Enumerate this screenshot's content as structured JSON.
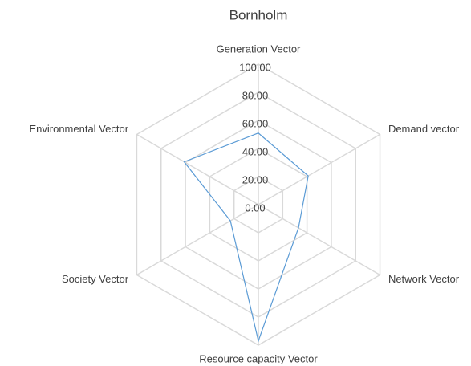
{
  "chart_data": {
    "type": "radar",
    "title": "Bornholm",
    "categories": [
      "Generation Vector",
      "Demand vector",
      "Network Vector",
      "Resource capacity Vector",
      "Society Vector",
      "Environmental Vector"
    ],
    "series": [
      {
        "name": "Bornholm",
        "color": "#5b9bd5",
        "values": [
          51,
          41,
          33,
          97,
          23,
          61
        ]
      }
    ],
    "ylim": [
      0,
      100
    ],
    "yticks": [
      {
        "value": 0,
        "label": "0.00"
      },
      {
        "value": 20,
        "label": "20.00"
      },
      {
        "value": 40,
        "label": "40.00"
      },
      {
        "value": 60,
        "label": "60.00"
      },
      {
        "value": 80,
        "label": "80.00"
      },
      {
        "value": 100,
        "label": "100.00"
      }
    ],
    "grid": true
  }
}
